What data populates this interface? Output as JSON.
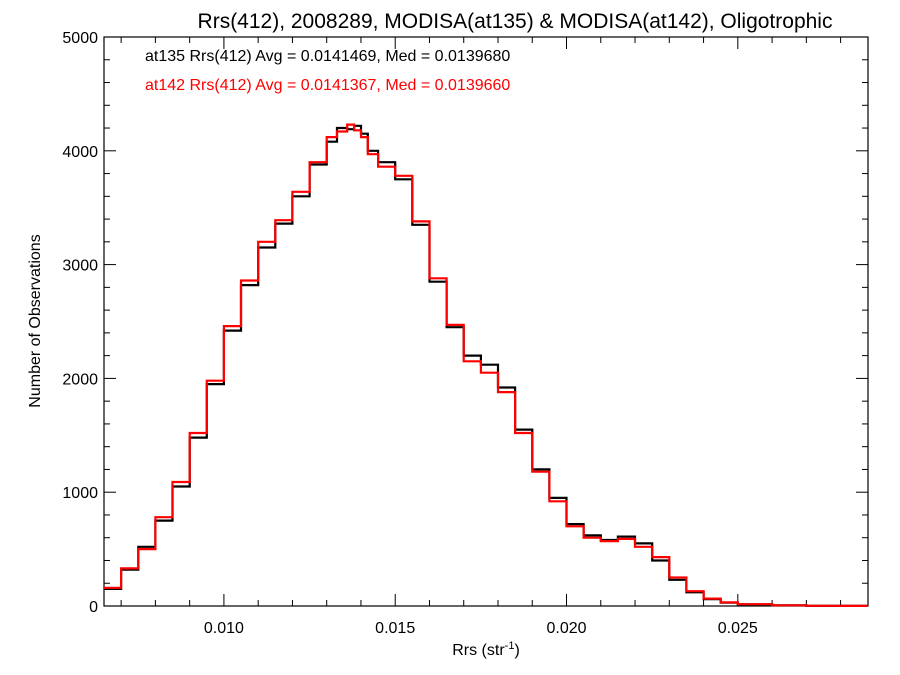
{
  "chart_data": {
    "type": "line",
    "title": "Rrs(412), 2008289, MODISA(at135) & MODISA(at142), Oligotrophic",
    "xlabel_main": "Rrs (str",
    "xlabel_sup": "-1",
    "xlabel_end": ")",
    "ylabel": "Number of Observations",
    "xlim": [
      0.0065,
      0.0288
    ],
    "ylim": [
      0,
      5000
    ],
    "xticks": [
      0.01,
      0.015,
      0.02,
      0.025
    ],
    "xtick_labels": [
      "0.010",
      "0.015",
      "0.020",
      "0.025"
    ],
    "yticks": [
      0,
      1000,
      2000,
      3000,
      4000,
      5000
    ],
    "ytick_labels": [
      "0",
      "1000",
      "2000",
      "3000",
      "4000",
      "5000"
    ],
    "grid": false,
    "legend_position": "top-left",
    "series": [
      {
        "name": "at135",
        "label": "at135 Rrs(412) Avg = 0.0141469, Med = 0.0139680",
        "color": "#000000",
        "x": [
          0.0065,
          0.007,
          0.0075,
          0.008,
          0.0085,
          0.009,
          0.0095,
          0.01,
          0.0105,
          0.011,
          0.0115,
          0.012,
          0.0125,
          0.013,
          0.0133,
          0.0136,
          0.0138,
          0.014,
          0.0142,
          0.0145,
          0.015,
          0.0155,
          0.016,
          0.0165,
          0.017,
          0.0175,
          0.018,
          0.0185,
          0.019,
          0.0195,
          0.02,
          0.0205,
          0.021,
          0.0215,
          0.022,
          0.0225,
          0.023,
          0.0235,
          0.024,
          0.0245,
          0.025,
          0.026,
          0.027,
          0.028,
          0.0288
        ],
        "y": [
          150,
          320,
          520,
          750,
          1050,
          1480,
          1950,
          2420,
          2820,
          3150,
          3360,
          3600,
          3880,
          4080,
          4200,
          4190,
          4220,
          4150,
          4000,
          3900,
          3750,
          3350,
          2850,
          2450,
          2200,
          2120,
          1920,
          1550,
          1200,
          950,
          720,
          620,
          580,
          610,
          550,
          400,
          230,
          120,
          60,
          30,
          15,
          5,
          2,
          1,
          1
        ]
      },
      {
        "name": "at142",
        "label": "at142 Rrs(412) Avg = 0.0141367, Med = 0.0139660",
        "color": "#ff0000",
        "x": [
          0.0065,
          0.007,
          0.0075,
          0.008,
          0.0085,
          0.009,
          0.0095,
          0.01,
          0.0105,
          0.011,
          0.0115,
          0.012,
          0.0125,
          0.013,
          0.0133,
          0.0136,
          0.0138,
          0.014,
          0.0142,
          0.0145,
          0.015,
          0.0155,
          0.016,
          0.0165,
          0.017,
          0.0175,
          0.018,
          0.0185,
          0.019,
          0.0195,
          0.02,
          0.0205,
          0.021,
          0.0215,
          0.022,
          0.0225,
          0.023,
          0.0235,
          0.024,
          0.0245,
          0.025,
          0.026,
          0.027,
          0.028,
          0.0288
        ],
        "y": [
          160,
          330,
          500,
          780,
          1090,
          1520,
          1980,
          2460,
          2860,
          3200,
          3390,
          3640,
          3900,
          4120,
          4170,
          4230,
          4180,
          4120,
          3970,
          3860,
          3780,
          3380,
          2880,
          2470,
          2150,
          2050,
          1880,
          1520,
          1180,
          920,
          700,
          600,
          570,
          590,
          520,
          430,
          250,
          130,
          65,
          32,
          16,
          6,
          2,
          1,
          1
        ]
      }
    ]
  }
}
